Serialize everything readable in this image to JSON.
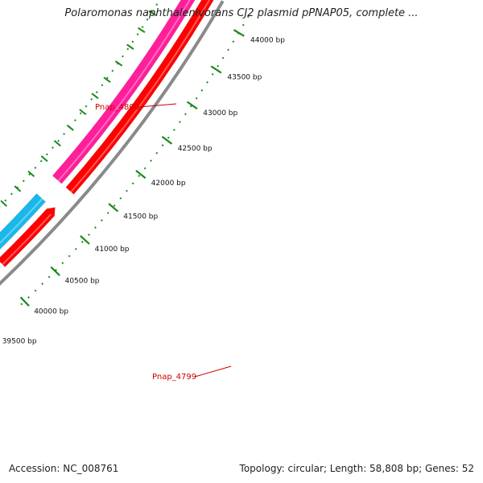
{
  "header": {
    "title": "Polaromonas naphthalenivorans CJ2 plasmid pPNAP05, complete ..."
  },
  "footer": {
    "accession": "Accession: NC_008761",
    "summary": "Topology: circular; Length: 58,808 bp; Genes: 52"
  },
  "ruler": {
    "ticks": [
      {
        "label": "44000 bp"
      },
      {
        "label": "43500 bp"
      },
      {
        "label": "43000 bp"
      },
      {
        "label": "42500 bp"
      },
      {
        "label": "42000 bp"
      },
      {
        "label": "41500 bp"
      },
      {
        "label": "41000 bp"
      },
      {
        "label": "40500 bp"
      },
      {
        "label": "40000 bp"
      },
      {
        "label": "39500 bp"
      }
    ]
  },
  "genes": [
    {
      "label": "Pnap_4800"
    },
    {
      "label": "Pnap_4799"
    }
  ],
  "colors": {
    "forward_cds": "#ff0000",
    "reverse_orf": "#ff1f9a",
    "reverse_cds_alt": "#1ab8ea",
    "backbone": "#8a8a8a",
    "ruler": "#1a8a1a",
    "gene_label": "#cc0000"
  }
}
